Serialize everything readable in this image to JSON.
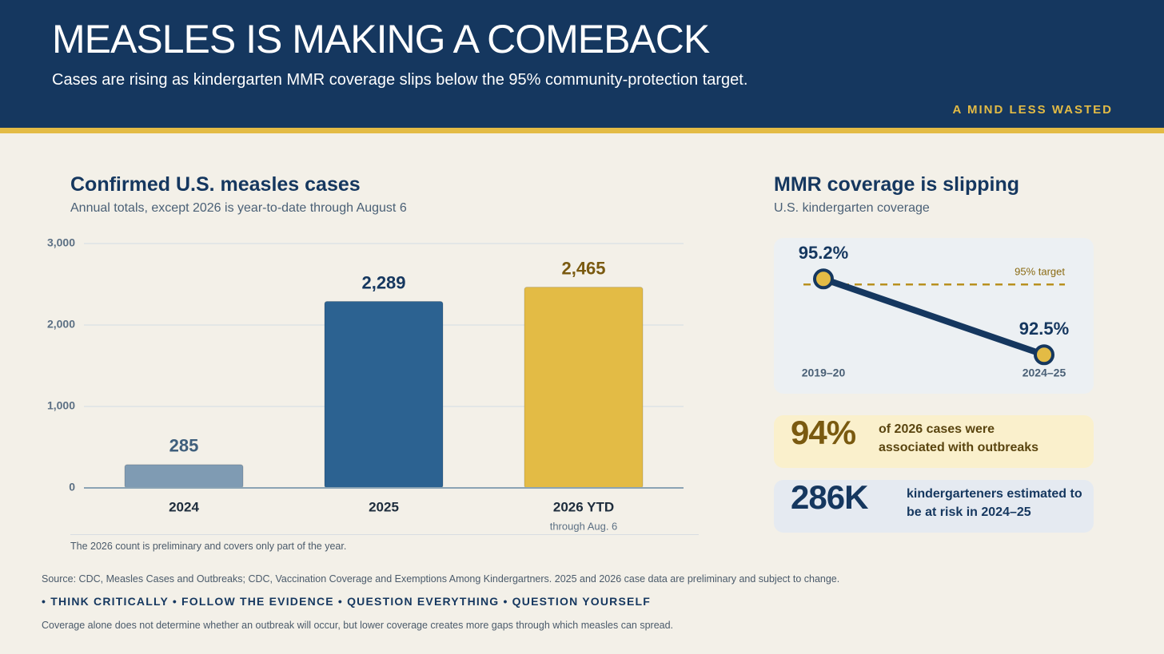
{
  "header": {
    "title": "MEASLES IS MAKING A COMEBACK",
    "subtitle": "Cases are rising as kindergarten MMR coverage slips below the 95% community-protection target.",
    "brand": "A MIND LESS WASTED"
  },
  "chart_data": [
    {
      "type": "bar",
      "title": "Confirmed U.S. measles cases",
      "subtitle": "Annual totals, except 2026 is year-to-date through August 6",
      "categories": [
        "2024",
        "2025",
        "2026 YTD"
      ],
      "category_notes": [
        null,
        null,
        "through Aug. 6"
      ],
      "values": [
        285,
        2289,
        2465
      ],
      "value_labels": [
        "285",
        "2,289",
        "2,465"
      ],
      "colors": [
        "#7f9bb3",
        "#2c6291",
        "#e3bb45"
      ],
      "label_colors": [
        "#3f5f7c",
        "#15375f",
        "#7a5a10"
      ],
      "ylim": [
        0,
        3000
      ],
      "yticks": [
        0,
        {
          "value": 1000,
          "label": "1,000"
        },
        {
          "value": 2000,
          "label": "2,000"
        },
        {
          "value": 3000,
          "label": "3,000"
        }
      ],
      "grid": true,
      "note": "The 2026 count is preliminary and covers only part of the year."
    },
    {
      "type": "line",
      "title": "MMR coverage is slipping",
      "subtitle": "U.S. kindergarten coverage",
      "categories": [
        "2019–20",
        "2024–25"
      ],
      "values": [
        95.2,
        92.5
      ],
      "value_labels": [
        "95.2%",
        "92.5%"
      ],
      "color": "#15375f",
      "marker_color": "#e3bb45",
      "ylim": [
        91.2,
        96.6
      ],
      "reference": {
        "value": 95,
        "label": "95% target",
        "color": "#b8901f"
      }
    }
  ],
  "stats": [
    {
      "value": "94%",
      "text": "of 2026 cases were associated with outbreaks"
    },
    {
      "value": "286K",
      "text": "kindergarteners estimated to be at risk in 2024–25"
    }
  ],
  "footer": {
    "source": "Source: CDC, Measles Cases and Outbreaks; CDC, Vaccination Coverage and Exemptions Among Kindergartners. 2025 and 2026 case data are preliminary and subject to change.",
    "motto": "• THINK CRITICALLY • FOLLOW THE EVIDENCE • QUESTION EVERYTHING • QUESTION YOURSELF",
    "disclaimer": "Coverage alone does not determine whether an outbreak will occur, but lower coverage creates more gaps through which measles can spread."
  }
}
